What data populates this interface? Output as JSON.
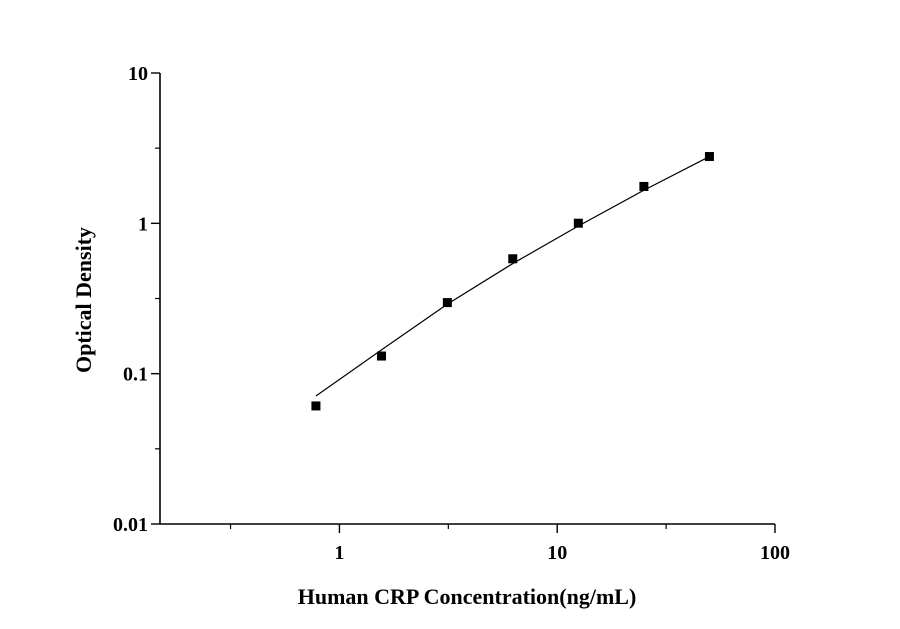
{
  "chart_data": {
    "type": "scatter",
    "xlabel": "Human CRP Concentration(ng/mL)",
    "ylabel": "Optical Density",
    "x_scale": "log",
    "y_scale": "log",
    "xlim": [
      0.15,
      100
    ],
    "ylim": [
      0.01,
      10
    ],
    "x_ticks": [
      1,
      10,
      100
    ],
    "x_tick_labels": [
      "1",
      "10",
      "100"
    ],
    "y_ticks": [
      0.01,
      0.1,
      1,
      10
    ],
    "y_tick_labels": [
      "0.01",
      "0.1",
      "1",
      "10"
    ],
    "grid": false,
    "legend": "none",
    "series": [
      {
        "marker": "square",
        "color": "#000000",
        "x": [
          0.78,
          1.56,
          3.13,
          6.25,
          12.5,
          25,
          50
        ],
        "y": [
          0.061,
          0.131,
          0.297,
          0.581,
          1.002,
          1.759,
          2.782
        ]
      }
    ],
    "fit_curve": {
      "color": "#000000",
      "x": [
        0.78,
        1.56,
        3.13,
        6.25,
        12.5,
        25,
        50
      ],
      "y": [
        0.071,
        0.144,
        0.29,
        0.54,
        0.96,
        1.66,
        2.78
      ]
    }
  }
}
